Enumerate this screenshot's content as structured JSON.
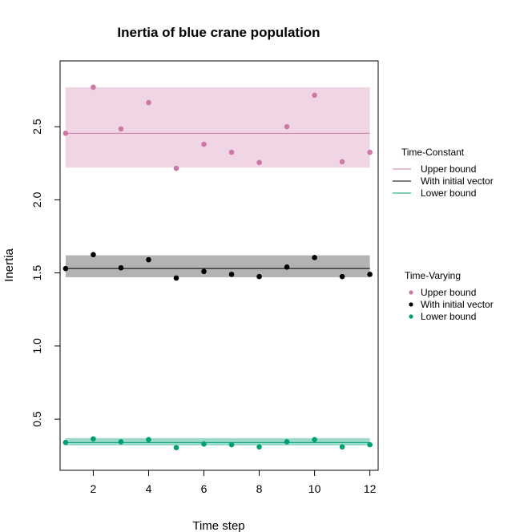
{
  "chart_data": {
    "type": "scatter",
    "title": "Inertia of blue crane population",
    "xlabel": "Time step",
    "ylabel": "Inertia",
    "xlim": [
      0.8,
      12.3
    ],
    "ylim": [
      0.15,
      2.95
    ],
    "xticks": [
      2,
      4,
      6,
      8,
      10,
      12
    ],
    "yticks": [
      0.5,
      1.0,
      1.5,
      2.0,
      2.5
    ],
    "ytick_labels": [
      "0.5",
      "1.0",
      "1.5",
      "2.0",
      "2.5"
    ],
    "x": [
      1,
      2,
      3,
      4,
      5,
      6,
      7,
      8,
      9,
      10,
      11,
      12
    ],
    "bands": [
      {
        "name": "Upper bound",
        "lower": 2.22,
        "upper": 2.77,
        "line": 2.455,
        "fill": "#f0d6e4",
        "line_color": "#cc79a7"
      },
      {
        "name": "With initial vector",
        "lower": 1.47,
        "upper": 1.62,
        "line": 1.53,
        "fill": "#b3b3b3",
        "line_color": "#000000"
      },
      {
        "name": "Lower bound",
        "lower": 0.32,
        "upper": 0.37,
        "line": 0.34,
        "fill": "#9bd9c8",
        "line_color": "#009e73"
      }
    ],
    "series": [
      {
        "name": "Upper bound",
        "color": "#cc79a7",
        "values": [
          2.455,
          2.77,
          2.485,
          2.665,
          2.215,
          2.38,
          2.325,
          2.255,
          2.5,
          2.715,
          2.26,
          2.325
        ]
      },
      {
        "name": "With initial vector",
        "color": "#000000",
        "values": [
          1.53,
          1.625,
          1.535,
          1.59,
          1.465,
          1.51,
          1.49,
          1.475,
          1.54,
          1.605,
          1.475,
          1.49
        ]
      },
      {
        "name": "Lower bound",
        "color": "#009e73",
        "values": [
          0.34,
          0.365,
          0.345,
          0.36,
          0.305,
          0.33,
          0.325,
          0.31,
          0.345,
          0.36,
          0.31,
          0.325
        ]
      }
    ],
    "legends": [
      {
        "title": "Time-Constant",
        "kind": "line",
        "items": [
          {
            "label": "Upper bound",
            "color": "#cc79a7"
          },
          {
            "label": "With initial vector",
            "color": "#000000"
          },
          {
            "label": "Lower bound",
            "color": "#009e73"
          }
        ]
      },
      {
        "title": "Time-Varying",
        "kind": "point",
        "items": [
          {
            "label": "Upper bound",
            "color": "#cc79a7"
          },
          {
            "label": "With initial vector",
            "color": "#000000"
          },
          {
            "label": "Lower bound",
            "color": "#009e73"
          }
        ]
      }
    ],
    "legend_position": "right",
    "grid": false
  }
}
